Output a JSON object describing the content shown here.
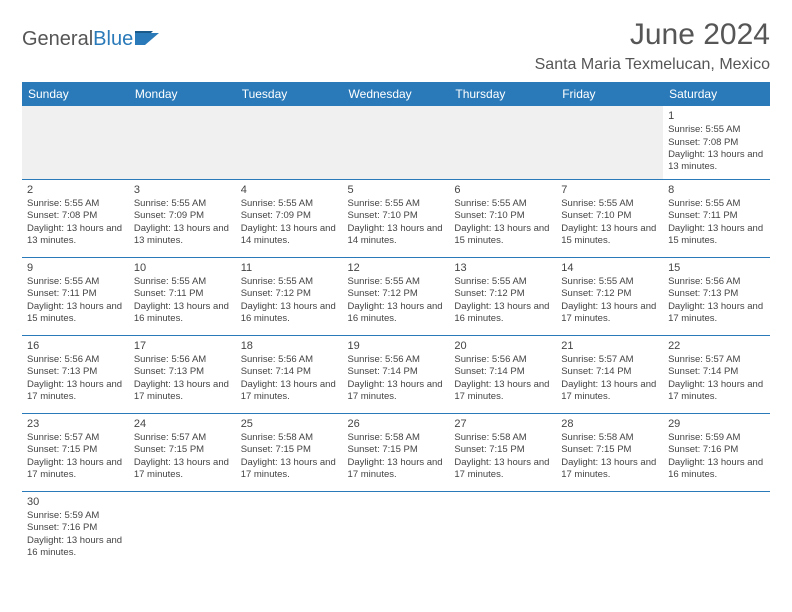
{
  "logo": {
    "text1": "General",
    "text2": "Blue"
  },
  "title": "June 2024",
  "location": "Santa Maria Texmelucan, Mexico",
  "headerColor": "#2a7ab9",
  "dayHeaders": [
    "Sunday",
    "Monday",
    "Tuesday",
    "Wednesday",
    "Thursday",
    "Friday",
    "Saturday"
  ],
  "firstWeekday": 6,
  "days": [
    {
      "n": "1",
      "sr": "5:55 AM",
      "ss": "7:08 PM",
      "dl": "13 hours and 13 minutes."
    },
    {
      "n": "2",
      "sr": "5:55 AM",
      "ss": "7:08 PM",
      "dl": "13 hours and 13 minutes."
    },
    {
      "n": "3",
      "sr": "5:55 AM",
      "ss": "7:09 PM",
      "dl": "13 hours and 13 minutes."
    },
    {
      "n": "4",
      "sr": "5:55 AM",
      "ss": "7:09 PM",
      "dl": "13 hours and 14 minutes."
    },
    {
      "n": "5",
      "sr": "5:55 AM",
      "ss": "7:10 PM",
      "dl": "13 hours and 14 minutes."
    },
    {
      "n": "6",
      "sr": "5:55 AM",
      "ss": "7:10 PM",
      "dl": "13 hours and 15 minutes."
    },
    {
      "n": "7",
      "sr": "5:55 AM",
      "ss": "7:10 PM",
      "dl": "13 hours and 15 minutes."
    },
    {
      "n": "8",
      "sr": "5:55 AM",
      "ss": "7:11 PM",
      "dl": "13 hours and 15 minutes."
    },
    {
      "n": "9",
      "sr": "5:55 AM",
      "ss": "7:11 PM",
      "dl": "13 hours and 15 minutes."
    },
    {
      "n": "10",
      "sr": "5:55 AM",
      "ss": "7:11 PM",
      "dl": "13 hours and 16 minutes."
    },
    {
      "n": "11",
      "sr": "5:55 AM",
      "ss": "7:12 PM",
      "dl": "13 hours and 16 minutes."
    },
    {
      "n": "12",
      "sr": "5:55 AM",
      "ss": "7:12 PM",
      "dl": "13 hours and 16 minutes."
    },
    {
      "n": "13",
      "sr": "5:55 AM",
      "ss": "7:12 PM",
      "dl": "13 hours and 16 minutes."
    },
    {
      "n": "14",
      "sr": "5:55 AM",
      "ss": "7:12 PM",
      "dl": "13 hours and 17 minutes."
    },
    {
      "n": "15",
      "sr": "5:56 AM",
      "ss": "7:13 PM",
      "dl": "13 hours and 17 minutes."
    },
    {
      "n": "16",
      "sr": "5:56 AM",
      "ss": "7:13 PM",
      "dl": "13 hours and 17 minutes."
    },
    {
      "n": "17",
      "sr": "5:56 AM",
      "ss": "7:13 PM",
      "dl": "13 hours and 17 minutes."
    },
    {
      "n": "18",
      "sr": "5:56 AM",
      "ss": "7:14 PM",
      "dl": "13 hours and 17 minutes."
    },
    {
      "n": "19",
      "sr": "5:56 AM",
      "ss": "7:14 PM",
      "dl": "13 hours and 17 minutes."
    },
    {
      "n": "20",
      "sr": "5:56 AM",
      "ss": "7:14 PM",
      "dl": "13 hours and 17 minutes."
    },
    {
      "n": "21",
      "sr": "5:57 AM",
      "ss": "7:14 PM",
      "dl": "13 hours and 17 minutes."
    },
    {
      "n": "22",
      "sr": "5:57 AM",
      "ss": "7:14 PM",
      "dl": "13 hours and 17 minutes."
    },
    {
      "n": "23",
      "sr": "5:57 AM",
      "ss": "7:15 PM",
      "dl": "13 hours and 17 minutes."
    },
    {
      "n": "24",
      "sr": "5:57 AM",
      "ss": "7:15 PM",
      "dl": "13 hours and 17 minutes."
    },
    {
      "n": "25",
      "sr": "5:58 AM",
      "ss": "7:15 PM",
      "dl": "13 hours and 17 minutes."
    },
    {
      "n": "26",
      "sr": "5:58 AM",
      "ss": "7:15 PM",
      "dl": "13 hours and 17 minutes."
    },
    {
      "n": "27",
      "sr": "5:58 AM",
      "ss": "7:15 PM",
      "dl": "13 hours and 17 minutes."
    },
    {
      "n": "28",
      "sr": "5:58 AM",
      "ss": "7:15 PM",
      "dl": "13 hours and 17 minutes."
    },
    {
      "n": "29",
      "sr": "5:59 AM",
      "ss": "7:16 PM",
      "dl": "13 hours and 16 minutes."
    },
    {
      "n": "30",
      "sr": "5:59 AM",
      "ss": "7:16 PM",
      "dl": "13 hours and 16 minutes."
    }
  ],
  "labels": {
    "sunrise": "Sunrise: ",
    "sunset": "Sunset: ",
    "daylight": "Daylight: "
  }
}
